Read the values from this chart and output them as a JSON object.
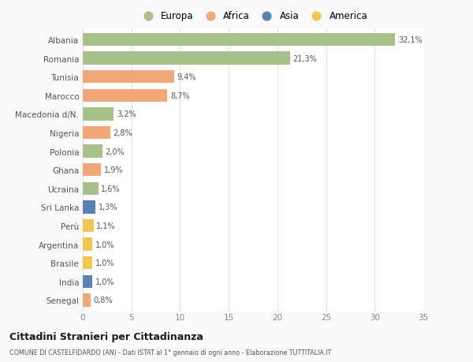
{
  "countries": [
    "Albania",
    "Romania",
    "Tunisia",
    "Marocco",
    "Macedonia d/N.",
    "Nigeria",
    "Polonia",
    "Ghana",
    "Ucraina",
    "Sri Lanka",
    "Perù",
    "Argentina",
    "Brasile",
    "India",
    "Senegal"
  ],
  "values": [
    32.1,
    21.3,
    9.4,
    8.7,
    3.2,
    2.8,
    2.0,
    1.9,
    1.6,
    1.3,
    1.1,
    1.0,
    1.0,
    1.0,
    0.8
  ],
  "labels": [
    "32,1%",
    "21,3%",
    "9,4%",
    "8,7%",
    "3,2%",
    "2,8%",
    "2,0%",
    "1,9%",
    "1,6%",
    "1,3%",
    "1,1%",
    "1,0%",
    "1,0%",
    "1,0%",
    "0,8%"
  ],
  "continents": [
    "Europa",
    "Europa",
    "Africa",
    "Africa",
    "Europa",
    "Africa",
    "Europa",
    "Africa",
    "Europa",
    "Asia",
    "America",
    "America",
    "America",
    "Asia",
    "Africa"
  ],
  "colors": {
    "Europa": "#a8c08a",
    "Africa": "#f0a878",
    "Asia": "#5b80b8",
    "America": "#f0c850"
  },
  "legend_order": [
    "Europa",
    "Africa",
    "Asia",
    "America"
  ],
  "title": "Cittadini Stranieri per Cittadinanza",
  "subtitle": "COMUNE DI CASTELFIDARDO (AN) - Dati ISTAT al 1° gennaio di ogni anno - Elaborazione TUTTITALIA.IT",
  "xlim": [
    0,
    35
  ],
  "xticks": [
    0,
    5,
    10,
    15,
    20,
    25,
    30,
    35
  ],
  "background_color": "#f9f9f9",
  "plot_background": "#ffffff",
  "grid_color": "#e0e0e0",
  "bar_height": 0.7
}
